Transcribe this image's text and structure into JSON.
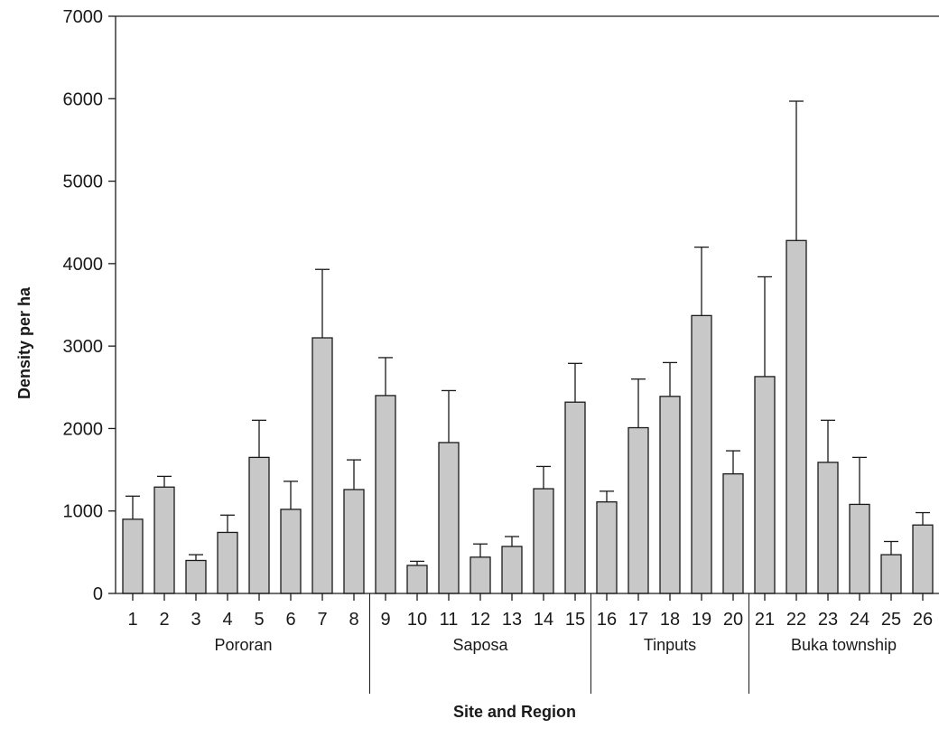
{
  "chart_data": {
    "type": "bar",
    "title": "",
    "xlabel": "Site and Region",
    "ylabel": "Density per ha",
    "ylim": [
      0,
      7000
    ],
    "yticks": [
      0,
      1000,
      2000,
      3000,
      4000,
      5000,
      6000,
      7000
    ],
    "grid": false,
    "legend": "none",
    "bar_color": "#c8c8c8",
    "edge_color": "#1a1a1a",
    "categories": [
      "1",
      "2",
      "3",
      "4",
      "5",
      "6",
      "7",
      "8",
      "9",
      "10",
      "11",
      "12",
      "13",
      "14",
      "15",
      "16",
      "17",
      "18",
      "19",
      "20",
      "21",
      "22",
      "23",
      "24",
      "25",
      "26"
    ],
    "values": [
      900,
      1290,
      400,
      740,
      1650,
      1020,
      3100,
      1260,
      2400,
      340,
      1830,
      440,
      570,
      1270,
      2320,
      1110,
      2010,
      2390,
      3370,
      1450,
      2630,
      4280,
      1590,
      1080,
      470,
      830
    ],
    "error_upper": [
      1180,
      1420,
      470,
      950,
      2100,
      1360,
      3930,
      1620,
      2860,
      390,
      2460,
      600,
      690,
      1540,
      2790,
      1240,
      2600,
      2800,
      4200,
      1730,
      3840,
      5970,
      2100,
      1650,
      630,
      980
    ],
    "groups": [
      {
        "name": "Pororan",
        "sites": [
          "1",
          "2",
          "3",
          "4",
          "5",
          "6",
          "7",
          "8"
        ]
      },
      {
        "name": "Saposa",
        "sites": [
          "9",
          "10",
          "11",
          "12",
          "13",
          "14",
          "15"
        ]
      },
      {
        "name": "Tinputs",
        "sites": [
          "16",
          "17",
          "18",
          "19",
          "20"
        ]
      },
      {
        "name": "Buka township",
        "sites": [
          "21",
          "22",
          "23",
          "24",
          "25",
          "26"
        ]
      }
    ]
  }
}
